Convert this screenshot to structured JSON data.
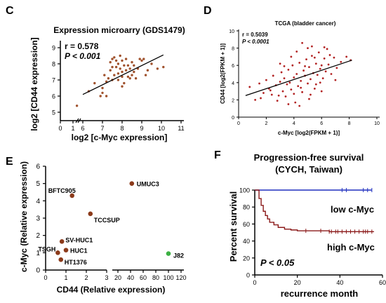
{
  "panel_labels": {
    "c": "C",
    "d": "D",
    "e": "E",
    "f": "F"
  },
  "panel_c": {
    "title": "Expression microarry (GDS1479)",
    "r": "r = 0.578",
    "p": "P < 0.001",
    "xlabel": "log2 [c-Myc expression]",
    "ylabel": "log2 [CD44 expression]",
    "colors": {
      "point": "#a0522d",
      "line": "#000000"
    }
  },
  "panel_d": {
    "title": "TCGA (bladder cancer)",
    "r": "r = 0.5039",
    "p": "P < 0.0001",
    "xlabel": "c-Myc [log2(FPKM + 1)]",
    "ylabel": "CD44 [log2(FPKM + 1)]",
    "colors": {
      "point": "#b22222",
      "line": "#000000"
    }
  },
  "panel_e": {
    "xlabel": "CD44 (Relative expression)",
    "ylabel": "c-Myc (Relative expression)",
    "colors": {
      "brown": "#8b3a1a",
      "green": "#3cb043"
    }
  },
  "panel_f": {
    "title_line1": "Progression-free survival",
    "title_line2": "(CYCH, Taiwan)",
    "xlabel": "recurrence month",
    "ylabel": "Percent survival",
    "low_label": "low c-Myc",
    "high_label": "high c-Myc",
    "p": "P < 0.05",
    "colors": {
      "low": "#1f2fbf",
      "high": "#8b1a1a"
    }
  },
  "chart_data": [
    {
      "type": "scatter",
      "title": "Expression microarry (GDS1479)",
      "xlabel": "log2 [c-Myc expression]",
      "ylabel": "log2 [CD44 expression]",
      "xlim": [
        0,
        11
      ],
      "ylim": [
        4.5,
        9.5
      ],
      "x_ticks": [
        0,
        1,
        6,
        7,
        8,
        9,
        10,
        11
      ],
      "y_ticks": [
        5,
        6,
        7,
        8,
        9
      ],
      "annotations": [
        "r = 0.578",
        "P < 0.001"
      ],
      "x": [
        5.7,
        6.3,
        6.6,
        6.9,
        7.0,
        7.1,
        7.2,
        7.2,
        7.3,
        7.4,
        7.4,
        7.5,
        7.5,
        7.6,
        7.6,
        7.7,
        7.7,
        7.8,
        7.8,
        7.8,
        7.9,
        7.9,
        8.0,
        8.0,
        8.0,
        8.1,
        8.1,
        8.2,
        8.2,
        8.3,
        8.3,
        8.4,
        8.4,
        8.5,
        8.5,
        8.6,
        8.7,
        8.8,
        8.9,
        9.0,
        9.1,
        9.3,
        9.5,
        9.8,
        10.1,
        7.0,
        7.5,
        8.0,
        8.6,
        9.2
      ],
      "y": [
        5.4,
        6.3,
        6.8,
        6.0,
        6.5,
        7.3,
        6.9,
        6.0,
        7.1,
        7.6,
        8.1,
        7.8,
        8.3,
        7.3,
        8.4,
        7.8,
        8.2,
        7.4,
        8.0,
        7.0,
        7.7,
        8.5,
        7.5,
        7.2,
        8.2,
        7.9,
        6.8,
        7.6,
        8.3,
        7.9,
        7.2,
        7.7,
        7.1,
        7.3,
        8.1,
        7.9,
        7.1,
        7.7,
        8.3,
        8.2,
        8.3,
        7.6,
        8.0,
        7.7,
        7.8,
        6.2,
        7.0,
        6.6,
        7.5,
        7.3
      ],
      "regression": {
        "x": [
          6.0,
          10.1
        ],
        "y": [
          6.1,
          8.55
        ]
      }
    },
    {
      "type": "scatter",
      "title": "TCGA (bladder cancer)",
      "xlabel": "c-Myc [log2(FPKM + 1)]",
      "ylabel": "CD44 [log2(FPKM + 1)]",
      "xlim": [
        0,
        10
      ],
      "ylim": [
        0,
        10
      ],
      "x_ticks": [
        0,
        2,
        4,
        6,
        8,
        10
      ],
      "y_ticks": [
        0,
        2,
        4,
        6,
        8,
        10
      ],
      "annotations": [
        "r = 0.5039",
        "P < 0.0001"
      ],
      "x": [
        0.8,
        1.2,
        1.5,
        1.8,
        2.0,
        2.2,
        2.4,
        2.5,
        2.7,
        2.8,
        3.0,
        3.1,
        3.2,
        3.3,
        3.4,
        3.5,
        3.6,
        3.7,
        3.8,
        3.9,
        4.0,
        4.1,
        4.2,
        4.3,
        4.4,
        4.5,
        4.6,
        4.7,
        4.8,
        4.9,
        5.0,
        5.1,
        5.2,
        5.3,
        5.4,
        5.5,
        5.6,
        5.7,
        5.8,
        5.9,
        6.0,
        6.1,
        6.2,
        6.3,
        6.4,
        6.5,
        6.7,
        6.9,
        7.1,
        7.4,
        7.8,
        8.1,
        1.6,
        2.3,
        2.9,
        3.3,
        3.6,
        4.0,
        4.2,
        4.5,
        4.8,
        5.1,
        5.3,
        5.6,
        5.9,
        6.2,
        6.6,
        7.0,
        3.0,
        3.8,
        4.4,
        5.0,
        5.5,
        6.0,
        4.6,
        5.2
      ],
      "y": [
        3.5,
        2.0,
        3.9,
        2.8,
        4.3,
        3.3,
        2.6,
        4.8,
        3.7,
        1.9,
        4.1,
        5.2,
        3.0,
        4.5,
        2.4,
        3.8,
        5.5,
        4.0,
        3.2,
        6.0,
        4.6,
        1.7,
        5.0,
        3.6,
        6.3,
        4.2,
        2.9,
        5.4,
        4.8,
        6.7,
        3.9,
        5.8,
        4.4,
        7.1,
        5.1,
        3.3,
        6.2,
        4.9,
        7.5,
        5.6,
        6.0,
        4.5,
        6.8,
        5.3,
        7.9,
        6.1,
        5.0,
        6.9,
        5.7,
        6.4,
        7.0,
        6.6,
        2.2,
        3.1,
        2.5,
        5.9,
        1.5,
        2.7,
        7.6,
        3.4,
        5.9,
        2.1,
        8.2,
        3.8,
        4.0,
        8.1,
        7.2,
        4.3,
        6.2,
        7.0,
        1.3,
        8.0,
        6.9,
        3.0,
        8.6,
        2.6
      ],
      "regression": {
        "x": [
          0.5,
          8.2
        ],
        "y": [
          2.5,
          6.6
        ]
      }
    },
    {
      "type": "scatter",
      "xlabel": "CD44 (Relative expression)",
      "ylabel": "c-Myc (Relative expression)",
      "ylim": [
        0,
        6
      ],
      "x_ticks": [
        0,
        1,
        2,
        3,
        20,
        40,
        60,
        80,
        100,
        120
      ],
      "y_ticks": [
        0,
        1,
        2,
        3,
        4,
        5,
        6
      ],
      "points": [
        {
          "name": "BFTC905",
          "x": 1.3,
          "y": 4.3,
          "color": "brown"
        },
        {
          "name": "UMUC3",
          "x": 42,
          "y": 5.0,
          "color": "brown"
        },
        {
          "name": "TCCSUP",
          "x": 2.2,
          "y": 3.25,
          "color": "brown"
        },
        {
          "name": "SV-HUC1",
          "x": 0.8,
          "y": 1.65,
          "color": "brown"
        },
        {
          "name": "HUC1",
          "x": 1.0,
          "y": 1.15,
          "color": "brown"
        },
        {
          "name": "TSGH",
          "x": 0.6,
          "y": 1.0,
          "color": "brown"
        },
        {
          "name": "HT1376",
          "x": 0.75,
          "y": 0.6,
          "color": "brown"
        },
        {
          "name": "J82",
          "x": 100,
          "y": 0.95,
          "color": "green"
        }
      ]
    },
    {
      "type": "line",
      "title": "Progression-free survival (CYCH, Taiwan)",
      "xlabel": "recurrence month",
      "ylabel": "Percent survival",
      "xlim": [
        0,
        60
      ],
      "ylim": [
        0,
        100
      ],
      "x_ticks": [
        0,
        20,
        40,
        60
      ],
      "y_ticks": [
        0,
        20,
        40,
        60,
        80,
        100
      ],
      "series": [
        {
          "name": "low c-Myc",
          "x": [
            0,
            55
          ],
          "y": [
            100,
            100
          ],
          "censor_x": [
            41,
            43,
            51,
            53,
            55
          ]
        },
        {
          "name": "high c-Myc",
          "x": [
            0,
            2,
            3,
            4,
            5,
            6,
            7,
            9,
            11,
            14,
            17,
            20,
            35,
            56
          ],
          "y": [
            100,
            90,
            82,
            75,
            70,
            66,
            62,
            59,
            56,
            54,
            53,
            52,
            51,
            51
          ],
          "censor_x": [
            24,
            31,
            35,
            36,
            38,
            39,
            41,
            43,
            45,
            47,
            49,
            51,
            52,
            53,
            55
          ]
        }
      ],
      "annotations": [
        "P < 0.05"
      ]
    }
  ]
}
